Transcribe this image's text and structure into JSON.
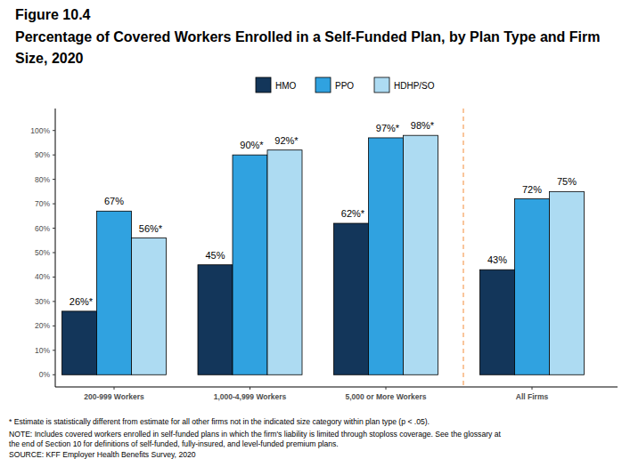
{
  "chart_data": {
    "type": "bar",
    "subtitle": "Figure 10.4",
    "title": "Percentage of Covered Workers Enrolled in a Self-Funded Plan, by Plan Type and Firm Size, 2020",
    "categories": [
      "200-999 Workers",
      "1,000-4,999 Workers",
      "5,000 or More Workers",
      "All Firms"
    ],
    "series": [
      {
        "name": "HMO",
        "color": "#13365a",
        "values": [
          26,
          45,
          62,
          43
        ],
        "value_labels": [
          "26%*",
          "45%",
          "62%*",
          "43%"
        ]
      },
      {
        "name": "PPO",
        "color": "#30a2e0",
        "values": [
          67,
          90,
          97,
          72
        ],
        "value_labels": [
          "67%",
          "90%*",
          "97%*",
          "72%"
        ]
      },
      {
        "name": "HDHP/SO",
        "color": "#addbf2",
        "values": [
          56,
          92,
          98,
          75
        ],
        "value_labels": [
          "56%*",
          "92%*",
          "98%*",
          "75%"
        ]
      }
    ],
    "ylim": [
      -5,
      109
    ],
    "yticks": [
      {
        "value": 0,
        "label": "0%"
      },
      {
        "value": 10,
        "label": "10%"
      },
      {
        "value": 20,
        "label": "20%"
      },
      {
        "value": 30,
        "label": "30%"
      },
      {
        "value": 40,
        "label": "40%"
      },
      {
        "value": 50,
        "label": "50%"
      },
      {
        "value": 60,
        "label": "60%"
      },
      {
        "value": 70,
        "label": "70%"
      },
      {
        "value": 80,
        "label": "80%"
      },
      {
        "value": 90,
        "label": "90%"
      },
      {
        "value": 100,
        "label": "100%"
      }
    ],
    "grid": false,
    "legend": "top",
    "data_labels": true,
    "annotations": [
      "* Estimate is statistically different from estimate for all other firms not in the indicated size category within plan type (p < .05).",
      "NOTE: Includes covered workers enrolled in self-funded plans in which the firm's liability is limited through stoploss coverage. See the glossary at",
      "the end of Section 10 for definitions of self-funded, fully-insured, and level-funded premium plans.",
      "SOURCE: KFF Employer Health Benefits Survey, 2020"
    ]
  }
}
